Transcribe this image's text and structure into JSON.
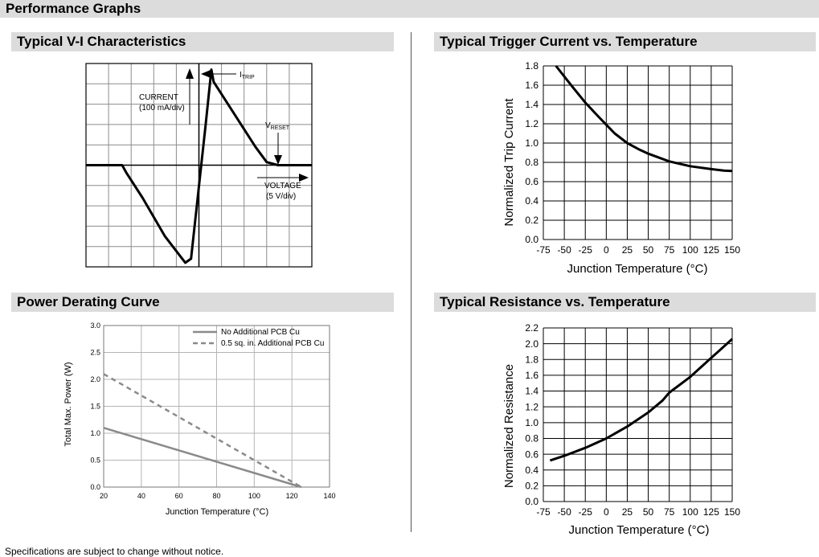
{
  "page_title": "Performance Graphs",
  "footer_note": "Specifications are subject to change without notice.",
  "chart_data": [
    {
      "title": "Typical V-I Characteristics",
      "type": "line",
      "current_label_line1": "CURRENT",
      "current_label_line2": "(100 mA/div)",
      "voltage_label_line1": "VOLTAGE",
      "voltage_label_line2": "(5 V/div)",
      "trip_label_main": "I",
      "trip_label_sub": "TRIP",
      "reset_label_main": "V",
      "reset_label_sub": "RESET",
      "x_divisions": 10,
      "y_divisions": 10,
      "xlim": [
        -5,
        5
      ],
      "ylim": [
        -5,
        5
      ],
      "series": [
        {
          "x": [
            -5,
            -3.4,
            -3.2,
            -2.5,
            -1.5,
            -0.6,
            -0.35,
            0.3,
            0.55,
            0.65,
            2.5,
            3.0,
            3.5,
            4.0,
            5.0
          ],
          "y": [
            0,
            0,
            -0.4,
            -1.6,
            -3.5,
            -4.8,
            -4.6,
            2.0,
            4.7,
            4.1,
            0.9,
            0.15,
            0,
            0,
            0
          ]
        }
      ]
    },
    {
      "title": "Typical Trigger Current vs. Temperature",
      "type": "line",
      "xlabel": "Junction Temperature (°C)",
      "ylabel": "Normalized Trip Current",
      "xlim": [
        -75,
        150
      ],
      "ylim": [
        0,
        1.8
      ],
      "xticks": [
        "-75",
        "-50",
        "-25",
        "0",
        "25",
        "50",
        "75",
        "100",
        "125",
        "150"
      ],
      "yticks": [
        "0.0",
        "0.2",
        "0.4",
        "0.6",
        "0.8",
        "1.0",
        "1.2",
        "1.4",
        "1.6",
        "1.8"
      ],
      "grid": true,
      "series": [
        {
          "x": [
            -60,
            -50,
            -40,
            -25,
            -10,
            0,
            10,
            25,
            40,
            50,
            75,
            100,
            125,
            140,
            150
          ],
          "y": [
            1.8,
            1.69,
            1.58,
            1.42,
            1.28,
            1.19,
            1.1,
            1.0,
            0.93,
            0.89,
            0.81,
            0.76,
            0.73,
            0.715,
            0.71
          ]
        }
      ]
    },
    {
      "title": "Power Derating Curve",
      "type": "line",
      "xlabel": "Junction Temperature (°C)",
      "ylabel": "Total Max. Power (W)",
      "xlim": [
        20,
        140
      ],
      "ylim": [
        0,
        3
      ],
      "xticks": [
        "20",
        "40",
        "60",
        "80",
        "100",
        "120",
        "140"
      ],
      "yticks": [
        "0.0",
        "0.5",
        "1.0",
        "1.5",
        "2.0",
        "2.5",
        "3.0"
      ],
      "grid": true,
      "legend_position": "top-right",
      "series": [
        {
          "name": "No Additional PCB Cu",
          "color": "#8a8a8a",
          "dash": "solid",
          "x": [
            20,
            125
          ],
          "y": [
            1.1,
            0
          ]
        },
        {
          "name": "0.5 sq. in. Additional PCB Cu",
          "color": "#8a8a8a",
          "dash": "dashed",
          "x": [
            20,
            125
          ],
          "y": [
            2.1,
            0
          ]
        }
      ]
    },
    {
      "title": "Typical Resistance vs. Temperature",
      "type": "line",
      "xlabel": "Junction Temperature (°C)",
      "ylabel": "Normalized Resistance",
      "xlim": [
        -75,
        150
      ],
      "ylim": [
        0,
        2.2
      ],
      "xticks": [
        "-75",
        "-50",
        "-25",
        "0",
        "25",
        "50",
        "75",
        "100",
        "125",
        "150"
      ],
      "yticks": [
        "0.0",
        "0.2",
        "0.4",
        "0.6",
        "0.8",
        "1.0",
        "1.2",
        "1.4",
        "1.6",
        "1.8",
        "2.0",
        "2.2"
      ],
      "grid": true,
      "series": [
        {
          "x": [
            -67,
            -50,
            -25,
            0,
            25,
            50,
            67,
            75,
            100,
            125,
            150
          ],
          "y": [
            0.52,
            0.58,
            0.68,
            0.8,
            0.95,
            1.13,
            1.28,
            1.38,
            1.58,
            1.82,
            2.06
          ]
        }
      ]
    }
  ]
}
